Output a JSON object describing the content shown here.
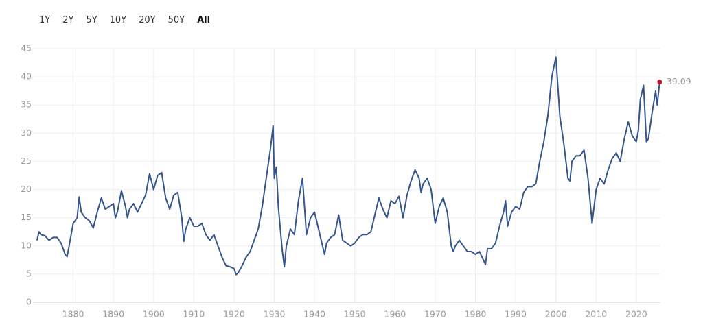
{
  "range_buttons": [
    "1Y",
    "2Y",
    "5Y",
    "10Y",
    "20Y",
    "50Y",
    "All"
  ],
  "active_range": "All",
  "chart_data": {
    "type": "line",
    "x": [
      1871,
      1871.5,
      1872,
      1873,
      1874,
      1875,
      1876,
      1877,
      1878,
      1878.5,
      1879,
      1880,
      1881,
      1881.5,
      1882,
      1883,
      1884,
      1885,
      1886,
      1887,
      1888,
      1889,
      1890,
      1890.5,
      1891,
      1892,
      1893,
      1893.5,
      1894,
      1895,
      1896,
      1897,
      1898,
      1899,
      1900,
      1901,
      1902,
      1903,
      1904,
      1905,
      1906,
      1907,
      1907.5,
      1908,
      1909,
      1910,
      1911,
      1912,
      1913,
      1914,
      1915,
      1916,
      1917,
      1918,
      1919,
      1920,
      1920.5,
      1921,
      1922,
      1923,
      1924,
      1925,
      1926,
      1927,
      1928,
      1929,
      1929.7,
      1930,
      1930.5,
      1931,
      1932,
      1932.5,
      1933,
      1934,
      1935,
      1936,
      1937,
      1937.5,
      1938,
      1939,
      1940,
      1941,
      1942,
      1942.5,
      1943,
      1944,
      1945,
      1946,
      1947,
      1948,
      1949,
      1950,
      1951,
      1952,
      1953,
      1954,
      1955,
      1956,
      1957,
      1958,
      1959,
      1960,
      1961,
      1962,
      1963,
      1964,
      1965,
      1966,
      1966.5,
      1967,
      1968,
      1969,
      1970,
      1971,
      1972,
      1973,
      1974,
      1974.5,
      1975,
      1976,
      1977,
      1978,
      1979,
      1980,
      1981,
      1982,
      1982.5,
      1983,
      1984,
      1985,
      1986,
      1987,
      1987.5,
      1988,
      1989,
      1990,
      1991,
      1992,
      1993,
      1994,
      1995,
      1996,
      1997,
      1998,
      1999,
      2000,
      2001,
      2002,
      2003,
      2003.5,
      2004,
      2005,
      2006,
      2007,
      2008,
      2009,
      2010,
      2011,
      2012,
      2013,
      2014,
      2015,
      2016,
      2017,
      2018,
      2019,
      2020,
      2020.5,
      2021,
      2021.8,
      2022.5,
      2023,
      2024,
      2024.8,
      2025.2,
      2025.8
    ],
    "series": [
      {
        "color": "#34558b",
        "values": [
          11,
          12.5,
          12,
          11.8,
          11,
          11.5,
          11.5,
          10.5,
          8.5,
          8.1,
          10,
          14,
          15,
          18.7,
          16,
          15,
          14.5,
          13.2,
          16,
          18.5,
          16.5,
          17,
          17.5,
          15,
          16,
          19.8,
          17,
          15,
          16.5,
          17.5,
          16,
          17.5,
          19,
          22.8,
          20,
          22.5,
          23,
          18.5,
          16.5,
          19,
          19.5,
          15,
          10.8,
          13,
          15,
          13.5,
          13.5,
          14,
          12,
          11,
          12,
          10,
          8,
          6.5,
          6.3,
          6,
          4.9,
          5.2,
          6.5,
          8,
          9,
          11,
          13,
          17,
          22,
          27,
          31.3,
          22,
          24,
          17,
          9,
          6.3,
          10,
          13,
          12,
          18,
          22,
          17,
          12,
          15,
          16,
          13,
          10,
          8.5,
          10.5,
          11.5,
          12,
          15.5,
          11,
          10.5,
          10,
          10.5,
          11.5,
          12,
          12,
          12.5,
          15.5,
          18.5,
          16.5,
          15,
          18,
          17.5,
          18.8,
          15,
          19,
          21.5,
          23.5,
          22,
          19.5,
          21,
          22,
          20,
          14,
          17,
          18.5,
          16,
          10,
          9,
          10,
          11,
          10,
          9,
          9,
          8.5,
          9,
          7.5,
          6.7,
          9.5,
          9.5,
          10.5,
          13.5,
          16,
          18,
          13.5,
          16,
          17,
          16.5,
          19.5,
          20.5,
          20.5,
          21,
          25,
          28.5,
          33,
          40,
          43.5,
          33,
          28,
          22,
          21.5,
          25,
          26,
          26,
          27,
          22,
          14,
          20,
          22,
          21,
          23.5,
          25.5,
          26.5,
          25,
          29,
          32,
          29.5,
          28.5,
          30.5,
          36,
          38.5,
          28.5,
          29,
          34,
          37.5,
          35,
          39.09
        ]
      }
    ],
    "last_point_color": "#c8102e",
    "xlim": [
      1870,
      2026
    ],
    "xticks": [
      1880,
      1890,
      1900,
      1910,
      1920,
      1930,
      1940,
      1950,
      1960,
      1970,
      1980,
      1990,
      2000,
      2010,
      2020
    ],
    "ylim": [
      0,
      45
    ],
    "yticks": [
      0,
      5,
      10,
      15,
      20,
      25,
      30,
      35,
      40,
      45
    ],
    "grid": true
  }
}
